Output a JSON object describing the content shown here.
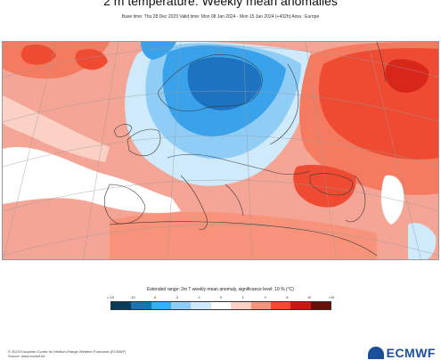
{
  "header": {
    "title": "2 m temperature: Weekly mean anomalies",
    "subtitle": "Base time: Thu 28 Dec 2023 Valid time: Mon 08 Jan 2024 - Mon 15 Jan 2024 (+432h) Area : Europe"
  },
  "legend": {
    "title": "Extended range: 2m T weekly mean anomaly, significance level: 10 % (°C)",
    "ticks": [
      "<-10",
      "-10",
      "-6",
      "-3",
      "-1",
      "0",
      "1",
      "3",
      "6",
      "10",
      ">10"
    ],
    "colors": [
      "#0b3b5c",
      "#1a73b5",
      "#39aef0",
      "#8dcdf7",
      "#cde9fb",
      "#ffffff",
      "#fbd0c5",
      "#f7937a",
      "#f04a30",
      "#c41a10",
      "#6a0f08"
    ]
  },
  "footer": {
    "copyright": "© 2023 European Centre for Medium-Range Weather Forecasts (ECMWF)",
    "source": "Source: www.ecmwf.int"
  },
  "logo": {
    "text": "ECMWF"
  },
  "map_colors": {
    "base_warm": "#f5a595",
    "warm": "#f47a60",
    "hot": "#ee4b32",
    "very_hot": "#d9261a",
    "neutral": "#ffffff",
    "cool_light": "#cfeafb",
    "cool": "#8fcdf7",
    "cold": "#3aa2ea",
    "very_cold": "#1d73c0",
    "sea_land_line": "#3a3a3a",
    "grid_line": "#9a9a9a"
  }
}
